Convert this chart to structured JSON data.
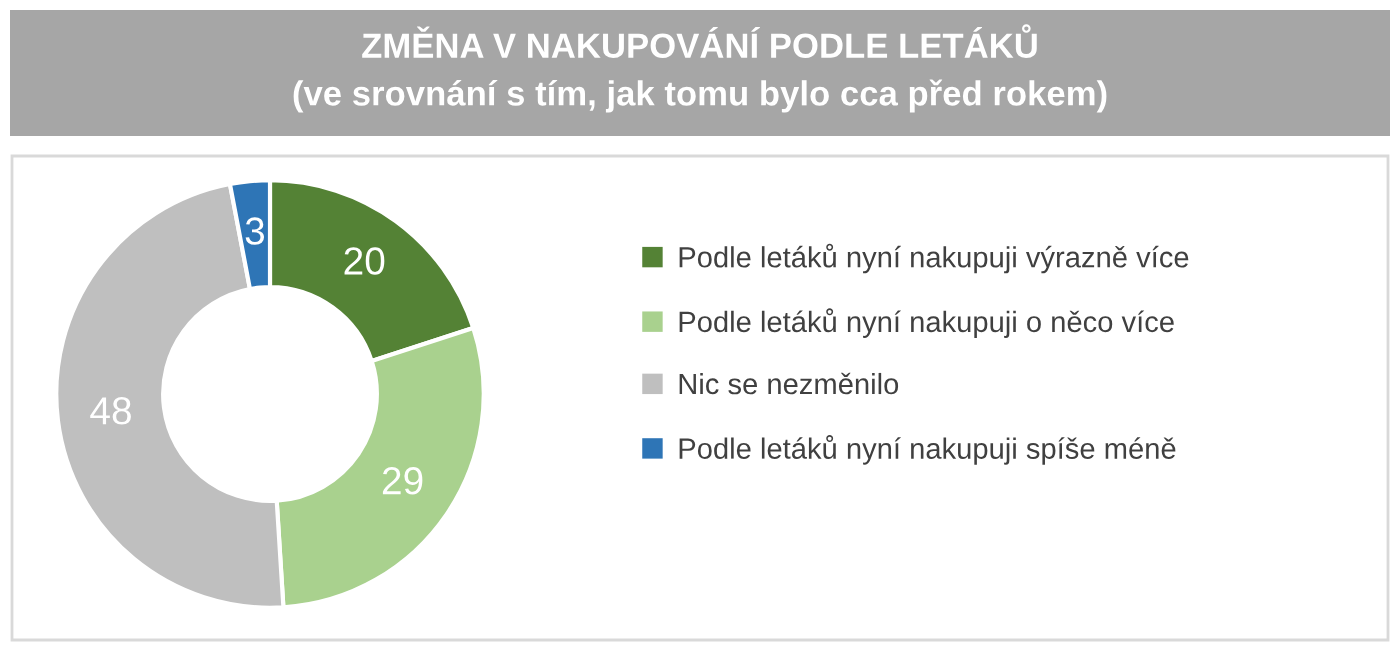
{
  "chart_data": {
    "type": "donut",
    "title": "ZMĚNA V NAKUPOVÁNÍ PODLE LETÁKŮ",
    "subtitle": "(ve srovnání s tím, jak tomu bylo cca před rokem)",
    "categories": [
      "Podle letáků nyní nakupuji výrazně více",
      "Podle letáků nyní nakupuji o něco více",
      "Nic se nezměnilo",
      "Podle letáků nyní nakupuji spíše méně"
    ],
    "values": [
      20,
      29,
      48,
      3
    ],
    "colors": [
      "#548235",
      "#a9d18e",
      "#bfbfbf",
      "#2e75b6"
    ],
    "data_labels": true,
    "legend": "right"
  }
}
